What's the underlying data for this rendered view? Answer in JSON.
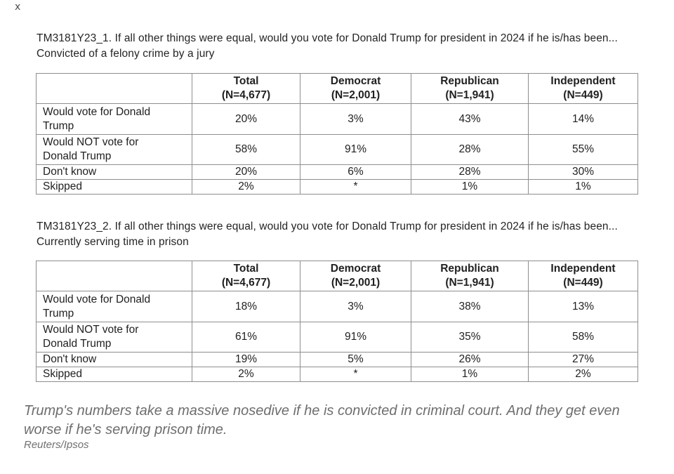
{
  "page": {
    "corner_mark": "x"
  },
  "colors": {
    "table_border": "#8e8e8e",
    "body_text": "#212121",
    "caption_text": "#6e6e6e"
  },
  "sections": [
    {
      "title": "TM3181Y23_1. If all other things were equal, would you vote for Donald Trump for president in 2024 if he is/has been... Convicted of a felony crime by a jury",
      "table": {
        "columns": [
          {
            "label": "",
            "n": ""
          },
          {
            "label": "Total",
            "n": "(N=4,677)"
          },
          {
            "label": "Democrat",
            "n": "(N=2,001)"
          },
          {
            "label": "Republican",
            "n": "(N=1,941)"
          },
          {
            "label": "Independent",
            "n": "(N=449)"
          }
        ],
        "rows": [
          {
            "label": "Would vote for Donald Trump",
            "values": [
              "20%",
              "3%",
              "43%",
              "14%"
            ]
          },
          {
            "label": "Would NOT vote for Donald Trump",
            "values": [
              "58%",
              "91%",
              "28%",
              "55%"
            ]
          },
          {
            "label": "Don't know",
            "values": [
              "20%",
              "6%",
              "28%",
              "30%"
            ]
          },
          {
            "label": "Skipped",
            "values": [
              "2%",
              "*",
              "1%",
              "1%"
            ]
          }
        ]
      }
    },
    {
      "title": "TM3181Y23_2. If all other things were equal, would you vote for Donald Trump for president in 2024 if he is/has been... Currently serving time in prison",
      "table": {
        "columns": [
          {
            "label": "",
            "n": ""
          },
          {
            "label": "Total",
            "n": "(N=4,677)"
          },
          {
            "label": "Democrat",
            "n": "(N=2,001)"
          },
          {
            "label": "Republican",
            "n": "(N=1,941)"
          },
          {
            "label": "Independent",
            "n": "(N=449)"
          }
        ],
        "rows": [
          {
            "label": "Would vote for Donald Trump",
            "values": [
              "18%",
              "3%",
              "38%",
              "13%"
            ]
          },
          {
            "label": "Would NOT vote for Donald Trump",
            "values": [
              "61%",
              "91%",
              "35%",
              "58%"
            ]
          },
          {
            "label": "Don't know",
            "values": [
              "19%",
              "5%",
              "26%",
              "27%"
            ]
          },
          {
            "label": "Skipped",
            "values": [
              "2%",
              "*",
              "1%",
              "2%"
            ]
          }
        ]
      }
    }
  ],
  "caption": {
    "text": "Trump's numbers take a massive nosedive if he is convicted in criminal court. And they get even worse if he's serving prison time.",
    "source": "Reuters/Ipsos"
  }
}
